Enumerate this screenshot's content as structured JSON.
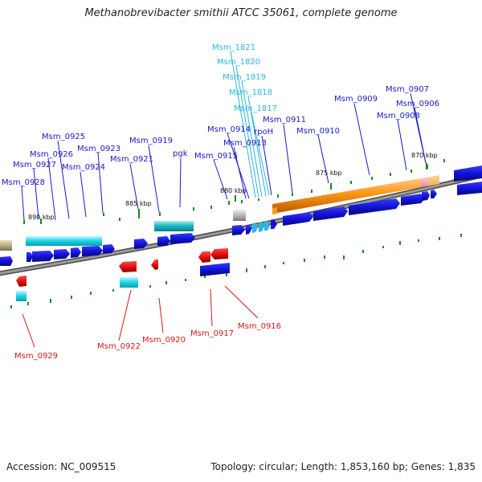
{
  "title": "Methanobrevibacter smithii ATCC 35061, complete genome",
  "footer": {
    "accession": "Accession: NC_009515",
    "summary": "Topology: circular; Length: 1,853,160 bp; Genes: 1,835"
  },
  "kbp_labels": {
    "k870": "870 kbp",
    "k875": "875 kbp",
    "k880": "880 kbp",
    "k885": "885 kbp",
    "k890": "890 kbp"
  },
  "gene_labels": {
    "msm0907": "Msm_0907",
    "msm0906": "Msm_0906",
    "msm0908": "Msm_0908",
    "msm0909": "Msm_0909",
    "msm0910": "Msm_0910",
    "msm0911": "Msm_0911",
    "rpoh": "rpoH",
    "msm0914": "Msm_0914",
    "msm0913": "Msm_0913",
    "msm0915": "Msm_0915",
    "msm1821": "Msm_1821",
    "msm1820": "Msm_1820",
    "msm1819": "Msm_1819",
    "msm1818": "Msm_1818",
    "msm1817": "Msm_1817",
    "msm0919": "Msm_0919",
    "pgk": "pgk",
    "msm0921": "Msm_0921",
    "msm0925": "Msm_0925",
    "msm0926": "Msm_0926",
    "msm0923": "Msm_0923",
    "msm0927": "Msm_0927",
    "msm0924": "Msm_0924",
    "msm0928": "Msm_0928",
    "msm0929": "Msm_0929",
    "msm0922": "Msm_0922",
    "msm0920": "Msm_0920",
    "msm0917": "Msm_0917",
    "msm0916": "Msm_0916"
  },
  "colors": {
    "forward_gene": "#1212d8",
    "reverse_gene": "#e81010",
    "cds_feature": "#22d8e8",
    "rrna_feature": "#ff9a1a",
    "pseudo_feature": "#b8b8b8",
    "repeat_region": "#b8ae82",
    "backbone": "#808080",
    "tick": "#1a8a1a"
  }
}
